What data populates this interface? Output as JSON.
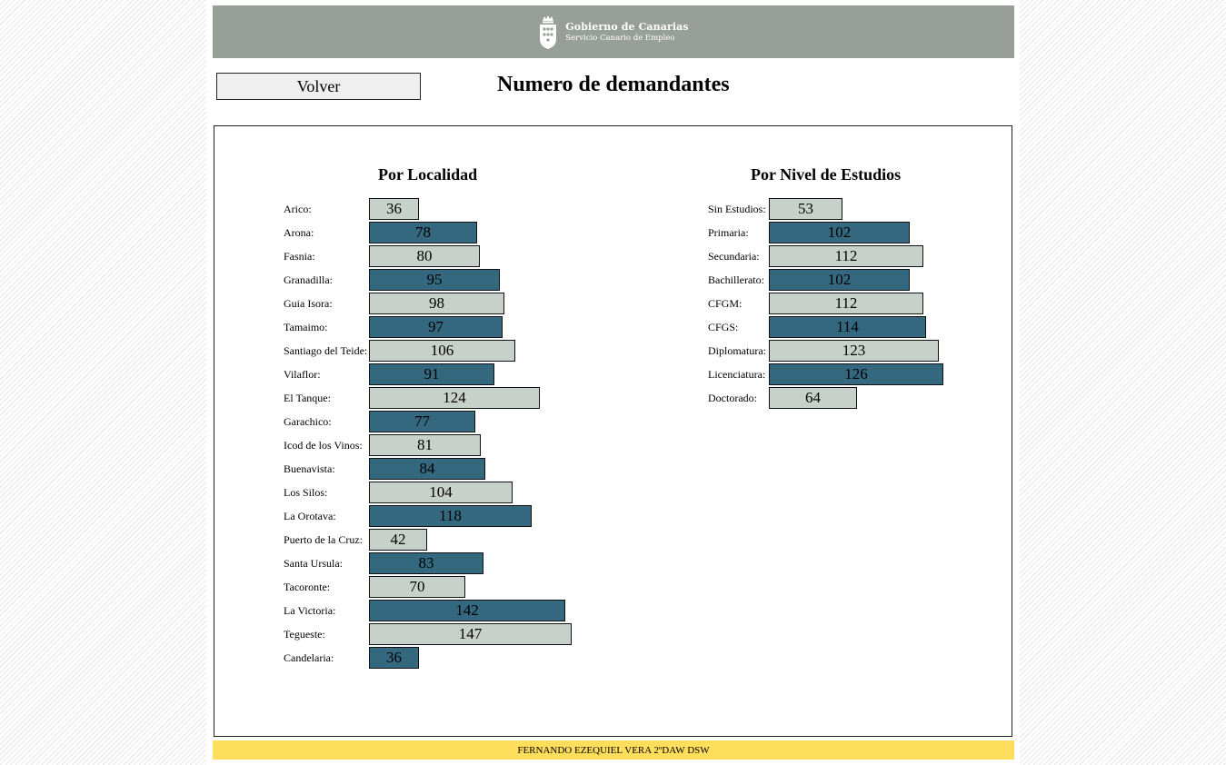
{
  "header": {
    "logo_title": "Gobierno de Canarias",
    "logo_subtitle": "Servicio Canario de Empleo",
    "logo_icon": "coat-of-arms-icon"
  },
  "toolbar": {
    "back_label": "Volver"
  },
  "page_title": "Numero de demandantes",
  "colors": {
    "bar_light": "#c7d0c9",
    "bar_dark": "#33687e",
    "banner": "#989e98",
    "footer": "#ffde5c"
  },
  "chart_data": [
    {
      "type": "bar",
      "orientation": "horizontal",
      "title": "Por Localidad",
      "categories": [
        "Arico:",
        "Arona:",
        "Fasnia:",
        "Granadilla:",
        "Guia Isora:",
        "Tamaimo:",
        "Santiago del Teide:",
        "Vilaflor:",
        "El Tanque:",
        "Garachico:",
        "Icod de los Vinos:",
        "Buenavista:",
        "Los Silos:",
        "La Orotava:",
        "Puerto de la Cruz:",
        "Santa Ursula:",
        "Tacoronte:",
        "La Victoria:",
        "Tegueste:",
        "Candelaria:"
      ],
      "values": [
        36,
        78,
        80,
        95,
        98,
        97,
        106,
        91,
        124,
        77,
        81,
        84,
        104,
        118,
        42,
        83,
        70,
        142,
        147,
        36
      ]
    },
    {
      "type": "bar",
      "orientation": "horizontal",
      "title": "Por Nivel de Estudios",
      "categories": [
        "Sin Estudios:",
        "Primaria:",
        "Secundaria:",
        "Bachillerato:",
        "CFGM:",
        "CFGS:",
        "Diplomatura:",
        "Licenciatura:",
        "Doctorado:"
      ],
      "values": [
        53,
        102,
        112,
        102,
        112,
        114,
        123,
        126,
        64
      ]
    }
  ],
  "footer": {
    "text": "FERNANDO EZEQUIEL VERA 2ºDAW DSW"
  }
}
